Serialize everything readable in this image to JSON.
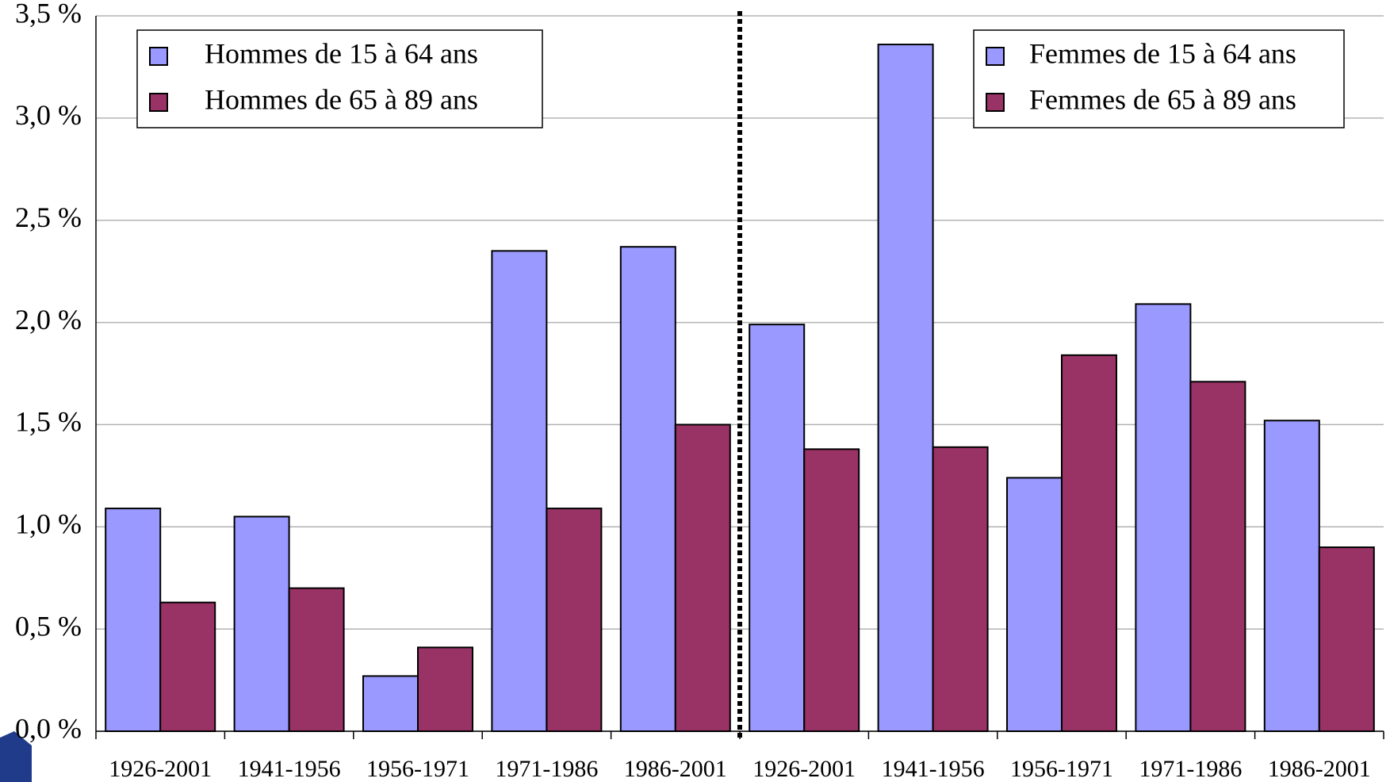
{
  "chart_data": {
    "type": "bar",
    "categories": [
      "1926-2001",
      "1941-1956",
      "1956-1971",
      "1971-1986",
      "1986-2001",
      "1926-2001",
      "1941-1956",
      "1956-1971",
      "1971-1986",
      "1986-2001"
    ],
    "series": [
      {
        "name": "Hommes de 15 à 64 ans",
        "color": "#9999ff",
        "legend": "upper left",
        "values": [
          1.09,
          1.05,
          0.27,
          2.35,
          2.37,
          null,
          null,
          null,
          null,
          null
        ]
      },
      {
        "name": "Hommes de 65 à 89 ans",
        "color": "#993366",
        "legend": "upper left",
        "values": [
          0.63,
          0.7,
          0.41,
          1.09,
          1.5,
          null,
          null,
          null,
          null,
          null
        ]
      },
      {
        "name": "Femmes de 15 à 64 ans",
        "color": "#9999ff",
        "legend": "upper right",
        "values": [
          null,
          null,
          null,
          null,
          null,
          1.99,
          3.36,
          1.24,
          2.09,
          1.52
        ]
      },
      {
        "name": "Femmes de 65 à 89 ans",
        "color": "#993366",
        "legend": "upper right",
        "values": [
          null,
          null,
          null,
          null,
          null,
          1.38,
          1.39,
          1.84,
          1.71,
          0.9
        ]
      }
    ],
    "ylim": [
      0,
      3.5
    ],
    "yticks": [
      {
        "value": 0,
        "label": "0,0 %"
      },
      {
        "value": 0.5,
        "label": "0,5 %"
      },
      {
        "value": 1,
        "label": "1,0 %"
      },
      {
        "value": 1.5,
        "label": "1,5 %"
      },
      {
        "value": 2,
        "label": "2,0 %"
      },
      {
        "value": 2.5,
        "label": "2,5 %"
      },
      {
        "value": 3,
        "label": "3,0 %"
      },
      {
        "value": 3.5,
        "label": "3,5 %"
      }
    ],
    "grid": true
  }
}
